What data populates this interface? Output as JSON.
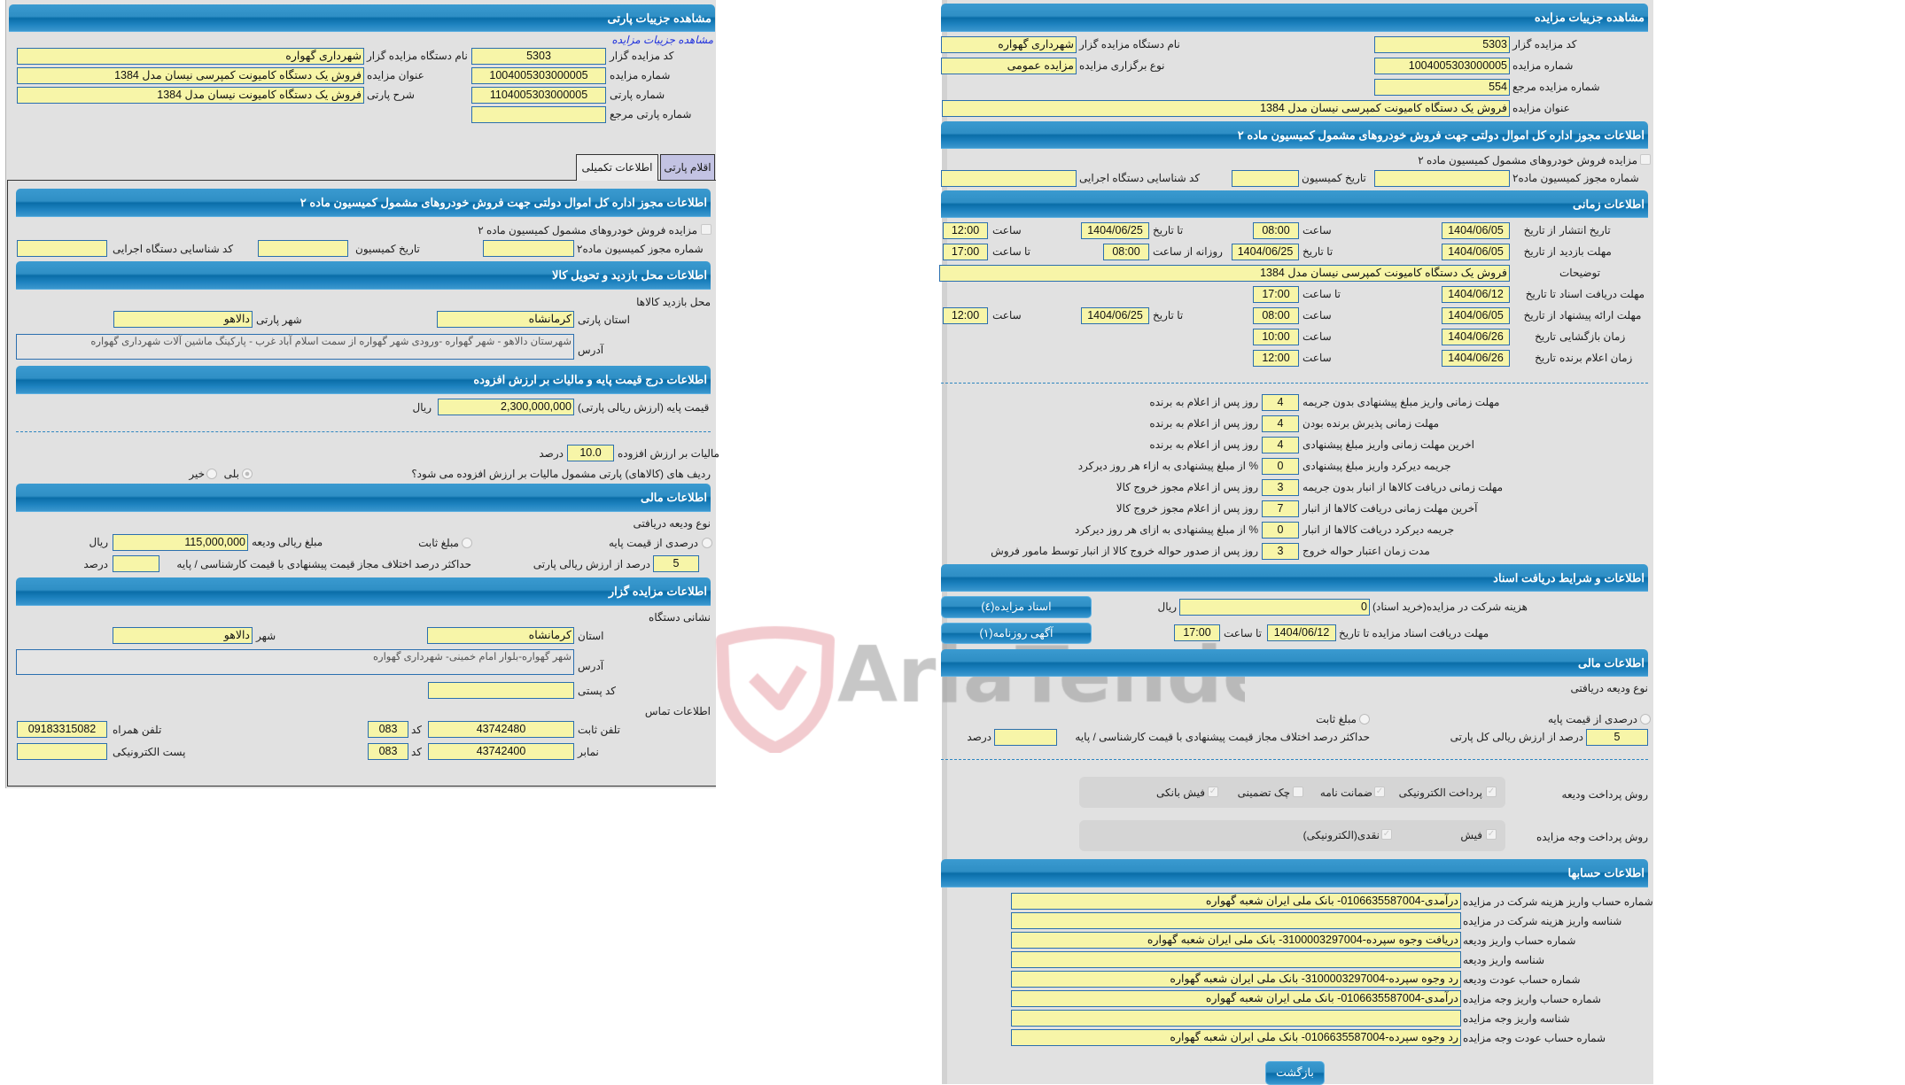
{
  "lot": {
    "title": "مشاهده جزییات پارتی",
    "auction_link": "مشاهده جزییات مزایده",
    "auctioneer_code": {
      "label": "کد مزایده گزار",
      "value": "5303"
    },
    "auctioneer_name": {
      "label": "نام دستگاه مزایده گزار",
      "value": "شهرداری گهواره"
    },
    "auction_number": {
      "label": "شماره مزایده",
      "value": "1004005303000005"
    },
    "auction_title": {
      "label": "عنوان مزایده",
      "value": "فروش یک دستگاه کامیونت کمپرسی نیسان مدل 1384"
    },
    "lot_number": {
      "label": "شماره پارتی",
      "value": "1104005303000005"
    },
    "lot_desc": {
      "label": "شرح پارتی",
      "value": "فروش یک دستگاه  کامیونت نیسان مدل 1384"
    },
    "lot_ref": {
      "label": "شماره پارتی مرجع",
      "value": ""
    },
    "tabs": [
      {
        "label": "اطلاعات تکمیلی",
        "active": true
      },
      {
        "label": "اقلام پارتی",
        "active": false
      }
    ],
    "commission": {
      "title": "اطلاعات مجوز اداره کل اموال دولتی جهت فروش خودروهای مشمول کمیسیون ماده ۲",
      "checkbox_label": "مزایده فروش خودروهای مشمول کمیسیون ماده ۲",
      "checked": false,
      "permit_label": "شماره مجوز کمیسیون ماده۲",
      "permit": "",
      "date_label": "تاریخ کمیسیون",
      "date": "",
      "exec_label": "کد شناسایی دستگاه اجرایی",
      "exec": ""
    },
    "visit": {
      "title": "اطلاعات محل بازدید و تحویل کالا",
      "subtitle": "محل بازدید کالاها",
      "province_label": "استان پارتی",
      "province": "کرمانشاه",
      "city_label": "شهر پارتی",
      "city": "دالاهو",
      "address_label": "آدرس",
      "address": "شهرستان دالاهو - شهر گهواره -ورودی شهر گهواره از سمت اسلام آباد غرب - پارکینگ ماشین آلات شهرداری گهواره"
    },
    "price": {
      "title": "اطلاعات درج قیمت پایه و مالیات بر ارزش افزوده",
      "base_label": "قیمت پایه (ارزش ریالی پارتی)",
      "base": "2,300,000,000",
      "unit": "ریال",
      "vat_label": "مالیات بر ارزش افزوده",
      "vat": "10.0",
      "percent": "درصد",
      "question": "ردیف های (کالاهای) پارتی مشمول مالیات بر ارزش افزوده می شود؟",
      "yes": "بلی",
      "no": "خیر",
      "selected": "yes"
    },
    "finance": {
      "title": "اطلاعات مالی",
      "deposit_type": "نوع ودیعه دریافتی",
      "opt_percent": "درصدی از قیمت پایه",
      "opt_fixed": "مبلغ ثابت",
      "amount_label": "مبلغ ریالی ودیعه",
      "amount": "115,000,000",
      "unit": "ریال",
      "pct": "5",
      "pct_label": "درصد از ارزش ریالی پارتی",
      "max_diff_label": "حداکثر درصد اختلاف مجاز قیمت پیشنهادی با قیمت کارشناسی / پایه",
      "max_diff": "",
      "percent": "درصد"
    },
    "auctioneer": {
      "title": "اطلاعات مزایده گزار",
      "address_title": "نشانی دستگاه",
      "province_label": "استان",
      "province": "کرمانشاه",
      "city_label": "شهر",
      "city": "دالاهو",
      "address_label": "آدرس",
      "address": "شهر گهواره-بلوار امام خمینی- شهرداری گهواره",
      "postal_label": "کد پستی",
      "postal": "",
      "contact_title": "اطلاعات تماس",
      "phone_label": "تلفن ثابت",
      "phone": "43742480",
      "code_label": "کد",
      "phone_code": "083",
      "mobile_label": "تلفن همراه",
      "mobile": "09183315082",
      "fax_label": "نمابر",
      "fax": "43742400",
      "fax_code": "083",
      "email_label": "پست الکترونیکی",
      "email": ""
    }
  },
  "auction": {
    "title": "مشاهده جزییات مزایده",
    "code": {
      "label": "کد مزایده گزار",
      "value": "5303"
    },
    "name": {
      "label": "نام دستگاه مزایده گزار",
      "value": "شهرداری گهواره"
    },
    "number": {
      "label": "شماره مزایده",
      "value": "1004005303000005"
    },
    "type": {
      "label": "نوع برگزاری مزایده",
      "value": "مزایده عمومی"
    },
    "ref": {
      "label": "شماره مزایده مرجع",
      "value": "554"
    },
    "subject": {
      "label": "عنوان مزایده",
      "value": "فروش یک دستگاه کامیونت کمپرسی نیسان مدل 1384"
    },
    "commission": {
      "title": "اطلاعات مجوز اداره کل اموال دولتی جهت فروش خودروهای مشمول کمیسیون ماده ۲",
      "checkbox_label": "مزایده فروش خودروهای مشمول کمیسیون ماده ۲",
      "checked": false,
      "permit_label": "شماره مجوز کمیسیون ماده۲",
      "permit": "",
      "date_label": "تاریخ کمیسیون",
      "date": "",
      "exec_label": "کد شناسایی دستگاه اجرایی",
      "exec": ""
    },
    "timing": {
      "title": "اطلاعات زمانی",
      "from_date": "از تاریخ",
      "to_date": "تا تاریخ",
      "date": "تاریخ",
      "time": "ساعت",
      "to_time": "تا ساعت",
      "daily_from": "روزانه از ساعت",
      "publish": {
        "label": "تاریخ انتشار",
        "from": "1404/06/05",
        "from_time": "08:00",
        "to": "1404/06/25",
        "to_time": "12:00"
      },
      "visit": {
        "label": "مهلت بازدید",
        "from": "1404/06/05",
        "to": "1404/06/25",
        "daily_from": "08:00",
        "daily_to": "17:00"
      },
      "notes": {
        "label": "توضیحات",
        "value": "فروش یک دستگاه کامیونت کمپرسی نیسان مدل 1384"
      },
      "docs": {
        "label": "مهلت دریافت اسناد",
        "to": "1404/06/12",
        "to_time": "17:00"
      },
      "offer": {
        "label": "مهلت ارائه پیشنهاد",
        "from": "1404/06/05",
        "from_time": "08:00",
        "to": "1404/06/25",
        "to_time": "12:00"
      },
      "opening": {
        "label": "زمان بازگشایی",
        "date": "1404/06/26",
        "time": "10:00"
      },
      "winner": {
        "label": "زمان اعلام برنده",
        "date": "1404/06/26",
        "time": "12:00"
      }
    },
    "deadlines": [
      {
        "label": "مهلت زمانی واریز مبلغ پیشنهادی بدون جریمه",
        "value": "4",
        "suffix": "روز پس از اعلام به برنده"
      },
      {
        "label": "مهلت زمانی پذیرش برنده بودن",
        "value": "4",
        "suffix": "روز پس از اعلام به برنده"
      },
      {
        "label": "اخرین مهلت زمانی واریز مبلغ پیشنهادی",
        "value": "4",
        "suffix": "روز پس از اعلام به برنده"
      },
      {
        "label": "جریمه دیرکرد واریز مبلغ پیشنهادی",
        "value": "0",
        "suffix": "% از مبلغ پیشنهادی به ازاء هر روز دیرکرد"
      },
      {
        "label": "مهلت زمانی دریافت کالاها از انبار بدون جریمه",
        "value": "3",
        "suffix": "روز پس از اعلام مجوز خروج کالا"
      },
      {
        "label": "آخرین مهلت زمانی دریافت کالاها از انبار",
        "value": "7",
        "suffix": "روز پس از اعلام مجوز خروج کالا"
      },
      {
        "label": "جریمه دیرکرد دریافت کالاها از انبار",
        "value": "0",
        "suffix": "% از مبلغ پیشنهادی به ازای هر روز دیرکرد"
      },
      {
        "label": "مدت زمان اعتبار حواله خروج",
        "value": "3",
        "suffix": "روز پس از صدور حواله خروج کالا از انبار توسط مامور فروش"
      }
    ],
    "docs": {
      "title": "اطلاعات و شرایط دریافت اسناد",
      "fee_label": "هزینه شرکت در مزایده(خرید اسناد)",
      "fee": "0",
      "unit": "ریال",
      "deadline_label": "مهلت دریافت اسناد مزایده تا تاریخ",
      "deadline_date": "1404/06/12",
      "to_time": "تا ساعت",
      "deadline_time": "17:00",
      "docs_button": "اسناد مزایده(٤)",
      "ads_button": "آگهی روزنامه(۱)"
    },
    "finance": {
      "title": "اطلاعات مالی",
      "deposit_type": "نوع ودیعه دریافتی",
      "opt_percent": "درصدی از قیمت پایه",
      "opt_fixed": "مبلغ ثابت",
      "pct": "5",
      "pct_label": "درصد از ارزش ریالی کل پارتی",
      "max_diff_label": "حداکثر درصد اختلاف مجاز قیمت پیشنهادی با قیمت کارشناسی / پایه",
      "max_diff": "",
      "percent": "درصد",
      "deposit_methods_label": "روش پرداخت ودیعه",
      "deposit_methods": [
        {
          "label": "پرداخت الکترونیکی",
          "checked": true
        },
        {
          "label": "ضمانت نامه",
          "checked": true
        },
        {
          "label": "چک تضمینی",
          "checked": false
        },
        {
          "label": "فیش بانکی",
          "checked": true
        }
      ],
      "payment_methods_label": "روش پرداخت وجه مزایده",
      "payment_methods": [
        {
          "label": "فیش",
          "checked": true
        },
        {
          "label": "نقدی(الکترونیکی)",
          "checked": true
        }
      ]
    },
    "accounts": {
      "title": "اطلاعات حسابها",
      "rows": [
        {
          "label": "شماره حساب واریز هزینه شرکت در مزایده",
          "value": "درآمدی-0106635587004- بانک ملی ایران شعبه گهواره"
        },
        {
          "label": "شناسه واریز هزینه شرکت در مزایده",
          "value": ""
        },
        {
          "label": "شماره حساب واریز ودیعه",
          "value": "دریافت وجوه سپرده-3100003297004- بانک ملی ایران شعبه گهواره"
        },
        {
          "label": "شناسه واریز ودیعه",
          "value": ""
        },
        {
          "label": "شماره حساب عودت ودیعه",
          "value": "رد وجوه سپرده-3100003297004- بانک ملی ایران شعبه گهواره"
        },
        {
          "label": "شماره حساب واریز وجه مزایده",
          "value": "درآمدی-0106635587004- بانک ملی ایران شعبه گهواره"
        },
        {
          "label": "شناسه واریز وجه مزایده",
          "value": ""
        },
        {
          "label": "شماره حساب عودت وجه مزایده",
          "value": "رد وجوه سپرده-0106635587004- بانک ملی ایران شعبه گهواره"
        }
      ]
    },
    "back_button": "بازگشت"
  },
  "watermark": {
    "text": "AriaTender.neT",
    "shield_color": "#e8a0a8",
    "text_color": "#9a9a9a"
  },
  "colors": {
    "header": "#0a6da8",
    "input_bg": "#f7f5a8",
    "input_border": "#2b6faf",
    "panel_bg": "#e1e1e1"
  }
}
